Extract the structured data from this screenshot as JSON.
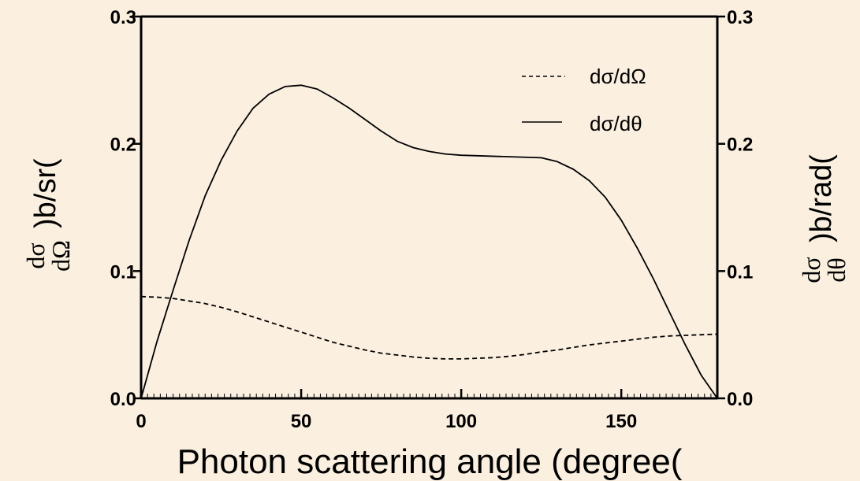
{
  "chart_data": {
    "type": "line",
    "title": "",
    "xlabel": "Photon scattering angle (degree(",
    "ylabel_left": {
      "symbol_numerator": "dσ",
      "symbol_denominator": "dΩ",
      "unit": ")b/sr("
    },
    "ylabel_right": {
      "symbol_numerator": "dσ",
      "symbol_denominator": "dθ",
      "unit": ")b/rad("
    },
    "xlim": [
      0,
      180
    ],
    "ylim_left": [
      0,
      0.3
    ],
    "ylim_right": [
      0,
      0.3
    ],
    "x_ticks": [
      0,
      50,
      100,
      150
    ],
    "x_tick_labels": [
      "0",
      "50",
      "100",
      "150"
    ],
    "y_ticks": [
      0,
      0.1,
      0.2,
      0.3
    ],
    "y_tick_labels_left": [
      "0.0",
      "0.1",
      "0.2",
      "0.3"
    ],
    "y_tick_labels_right": [
      "0.0",
      "0.1",
      "0.2",
      "0.3"
    ],
    "grid": false,
    "legend_position": "top-right",
    "series": [
      {
        "name": "dσ/dΩ",
        "style": "dashed",
        "color": "#000000",
        "x": [
          0,
          5,
          10,
          15,
          20,
          25,
          30,
          35,
          40,
          45,
          50,
          55,
          60,
          65,
          70,
          75,
          80,
          85,
          90,
          95,
          100,
          105,
          110,
          115,
          120,
          125,
          130,
          135,
          140,
          145,
          150,
          155,
          160,
          165,
          170,
          175,
          180
        ],
        "values": [
          0.08,
          0.0795,
          0.0785,
          0.0765,
          0.0745,
          0.0715,
          0.068,
          0.064,
          0.06,
          0.056,
          0.052,
          0.048,
          0.044,
          0.041,
          0.038,
          0.0355,
          0.034,
          0.0325,
          0.0315,
          0.031,
          0.031,
          0.0315,
          0.032,
          0.033,
          0.0345,
          0.0365,
          0.038,
          0.04,
          0.042,
          0.0435,
          0.045,
          0.0465,
          0.048,
          0.049,
          0.0495,
          0.05,
          0.0505
        ]
      },
      {
        "name": "dσ/dθ",
        "style": "solid",
        "color": "#000000",
        "x": [
          0,
          5,
          10,
          15,
          20,
          25,
          30,
          35,
          40,
          45,
          50,
          55,
          60,
          65,
          70,
          75,
          80,
          85,
          90,
          95,
          100,
          125,
          130,
          135,
          140,
          145,
          150,
          155,
          160,
          165,
          170,
          175,
          180
        ],
        "values": [
          0.0,
          0.045,
          0.085,
          0.124,
          0.159,
          0.187,
          0.21,
          0.228,
          0.239,
          0.245,
          0.246,
          0.243,
          0.236,
          0.228,
          0.219,
          0.21,
          0.202,
          0.197,
          0.194,
          0.192,
          0.191,
          0.189,
          0.186,
          0.18,
          0.171,
          0.158,
          0.14,
          0.118,
          0.094,
          0.068,
          0.042,
          0.018,
          0.0
        ]
      }
    ],
    "legend": [
      {
        "label": "dσ/dΩ",
        "style": "dashed"
      },
      {
        "label": "dσ/dθ",
        "style": "solid"
      }
    ],
    "colors": {
      "background": "#fbf0e0",
      "line": "#000000"
    }
  }
}
